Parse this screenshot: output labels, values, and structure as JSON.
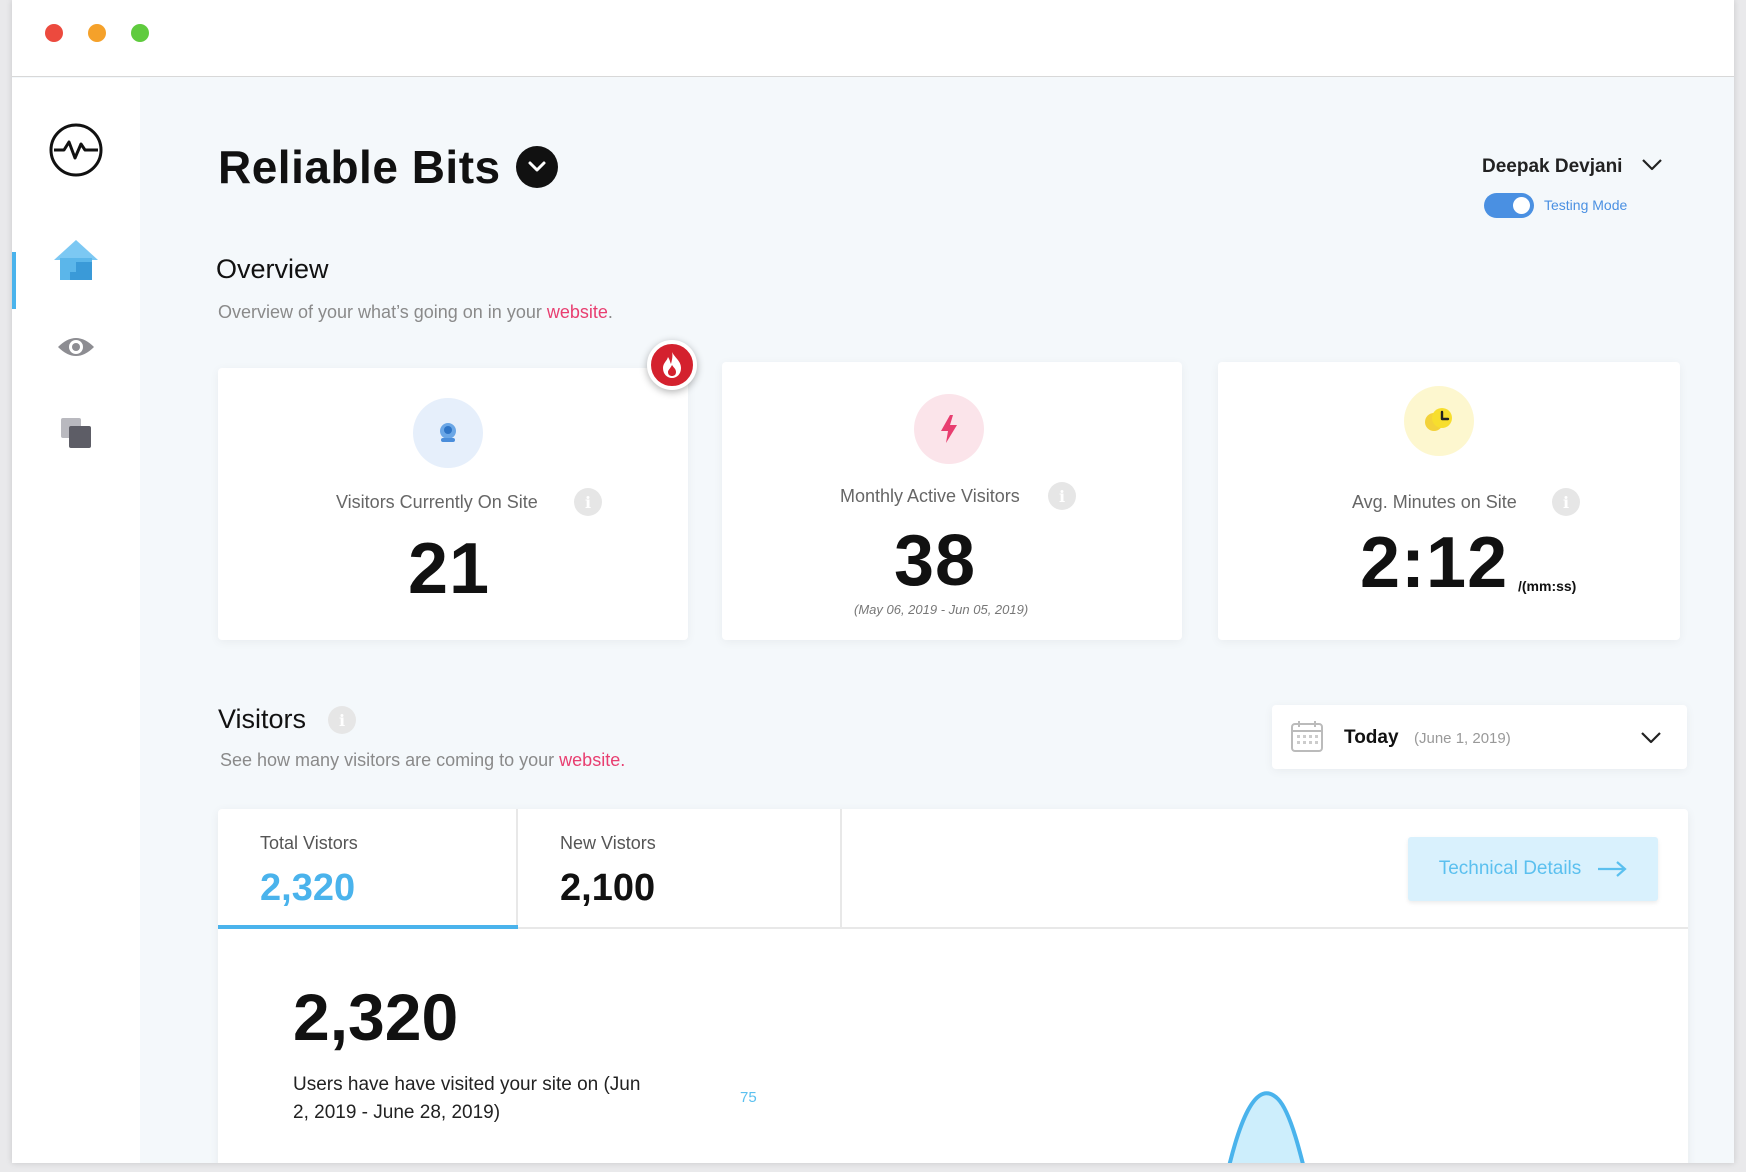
{
  "app": {
    "brand": "Reliable Bits",
    "user_name": "Deepak Devjani",
    "testing_mode_label": "Testing Mode",
    "testing_mode_on": true
  },
  "sidebar": {
    "items": [
      {
        "name": "home",
        "active": true
      },
      {
        "name": "eye",
        "active": false
      },
      {
        "name": "layers",
        "active": false
      }
    ]
  },
  "overview": {
    "title": "Overview",
    "subtitle": "Overview of your what’s going on in your",
    "subtitle_link": "website",
    "subtitle_end": ".",
    "cards": [
      {
        "label": "Visitors Currently On Site",
        "value": "21",
        "icon": "user-icon",
        "badge": "fire-icon"
      },
      {
        "label": "Monthly Active Visitors",
        "value": "38",
        "note": "(May 06, 2019 - Jun 05, 2019)",
        "icon": "bolt-icon"
      },
      {
        "label": "Avg. Minutes on Site",
        "value": "2:12",
        "unit": "/(mm:ss)",
        "icon": "clock-icon"
      }
    ],
    "info_glyph": "i"
  },
  "visitors": {
    "title": "Visitors",
    "subtitle": "See how many visitors are coming to your",
    "subtitle_link": "website.",
    "date_select": {
      "label": "Today",
      "detail": "(June 1, 2019)"
    },
    "tabs": [
      {
        "label": "Total Vistors",
        "value": "2,320",
        "active": true
      },
      {
        "label": "New Vistors",
        "value": "2,100",
        "active": false
      }
    ],
    "tech_button": "Technical Details",
    "big_value": "2,320",
    "description": "Users have have visited your site on (Jun 2, 2019 - June 28, 2019)",
    "axis_tick": "75"
  },
  "colors": {
    "accent": "#4ab3ec",
    "pink": "#e83e70",
    "toggle": "#4a90e2",
    "fire": "#d4212e"
  }
}
